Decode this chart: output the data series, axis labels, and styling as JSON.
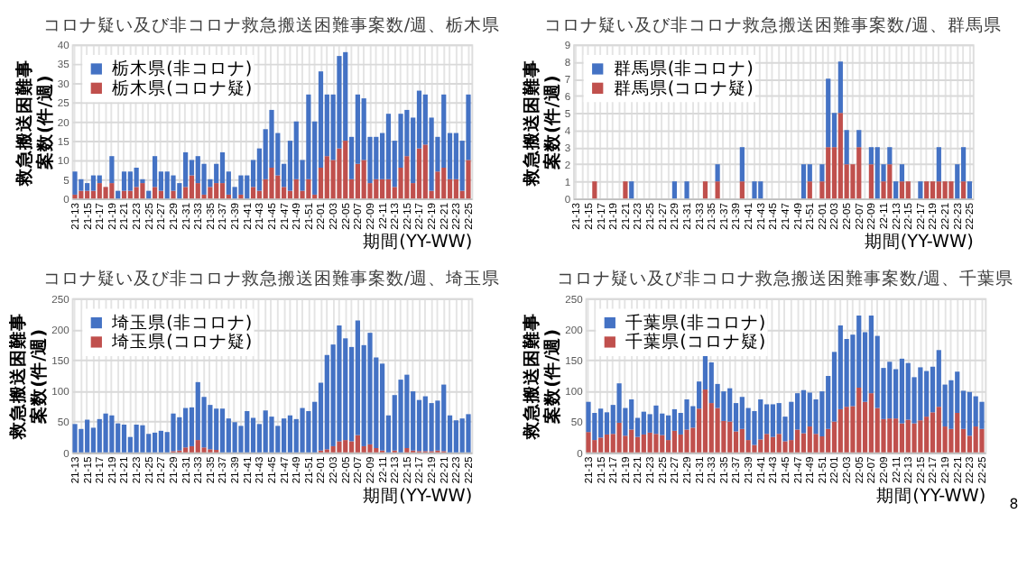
{
  "chart_data": [
    {
      "type": "bar",
      "title": "コロナ疑い及び非コロナ救急搬送困難事案数/週、栃木県",
      "xlabel": "期間(YY-WW)",
      "ylabel": "救急搬送困難事案数(件/週)",
      "stacked": true,
      "grid": true,
      "legend": "top left",
      "ylim": [
        0,
        40
      ],
      "yticks": [
        0,
        5,
        10,
        15,
        20,
        25,
        30,
        35,
        40
      ],
      "categories": [
        "21-13",
        null,
        "21-15",
        null,
        "21-17",
        null,
        "21-19",
        null,
        "21-21",
        null,
        "21-23",
        null,
        "21-25",
        null,
        "21-27",
        null,
        "21-29",
        null,
        "21-31",
        null,
        "21-33",
        null,
        "21-35",
        null,
        "21-37",
        null,
        "21-39",
        null,
        "21-41",
        null,
        "21-43",
        null,
        "21-45",
        null,
        "21-47",
        null,
        "21-49",
        null,
        "21-51",
        null,
        "22-01",
        null,
        "22-03",
        null,
        "22-05",
        null,
        "22-07",
        null,
        "22-09",
        null,
        "22-11",
        null,
        "22-13",
        null,
        "22-15",
        null,
        "22-17",
        null,
        "22-19",
        null,
        "22-21",
        null,
        "22-23",
        null,
        "22-25"
      ],
      "series": [
        {
          "name": "栃木県(コロナ疑)",
          "color": "#c0504d",
          "values": [
            1,
            2,
            2,
            2,
            4,
            3,
            4,
            0,
            2,
            2,
            3,
            4,
            0,
            3,
            2,
            0,
            2,
            0,
            3,
            6,
            4,
            1,
            3,
            4,
            4,
            1,
            0,
            1,
            0,
            3,
            2,
            5,
            8,
            6,
            3,
            2,
            5,
            2,
            5,
            1,
            8,
            11,
            10,
            13,
            15,
            5,
            9,
            10,
            4,
            5,
            5,
            5,
            3,
            8,
            11,
            4,
            13,
            14,
            2,
            7,
            8,
            5,
            5,
            2,
            10
          ]
        },
        {
          "name": "栃木県(非コロナ)",
          "color": "#4472c4",
          "values": [
            6,
            3,
            2,
            4,
            2,
            0,
            7,
            2,
            5,
            5,
            5,
            1,
            2,
            8,
            5,
            7,
            4,
            4,
            9,
            4,
            7,
            8,
            2,
            5,
            8,
            6,
            3,
            5,
            6,
            7,
            11,
            13,
            15,
            11,
            6,
            13,
            15,
            8,
            22,
            19,
            25,
            16,
            17,
            24,
            23,
            11,
            18,
            16,
            12,
            11,
            12,
            17,
            12,
            14,
            12,
            17,
            15,
            13,
            19,
            9,
            19,
            12,
            12,
            13,
            17
          ]
        }
      ]
    },
    {
      "type": "bar",
      "title": "コロナ疑い及び非コロナ救急搬送困難事案数/週、群馬県",
      "xlabel": "期間(YY-WW)",
      "ylabel": "救急搬送困難事案数(件/週)",
      "stacked": true,
      "grid": true,
      "legend": "top left",
      "ylim": [
        0,
        9
      ],
      "yticks": [
        0,
        1,
        2,
        3,
        4,
        5,
        6,
        7,
        8,
        9
      ],
      "categories": [
        "21-13",
        null,
        "21-15",
        null,
        "21-17",
        null,
        "21-19",
        null,
        "21-21",
        null,
        "21-23",
        null,
        "21-25",
        null,
        "21-27",
        null,
        "21-29",
        null,
        "21-31",
        null,
        "21-33",
        null,
        "21-35",
        null,
        "21-37",
        null,
        "21-39",
        null,
        "21-41",
        null,
        "21-43",
        null,
        "21-45",
        null,
        "21-47",
        null,
        "21-49",
        null,
        "21-51",
        null,
        "22-01",
        null,
        "22-03",
        null,
        "22-05",
        null,
        "22-07",
        null,
        "22-09",
        null,
        "22-11",
        null,
        "22-13",
        null,
        "22-15",
        null,
        "22-17",
        null,
        "22-19",
        null,
        "22-21",
        null,
        "22-23",
        null,
        "22-25"
      ],
      "series": [
        {
          "name": "群馬県(コロナ疑)",
          "color": "#c0504d",
          "values": [
            0,
            0,
            0,
            1,
            0,
            0,
            0,
            0,
            1,
            0,
            0,
            0,
            0,
            0,
            0,
            0,
            0,
            0,
            0,
            0,
            0,
            1,
            0,
            1,
            0,
            0,
            0,
            1,
            0,
            0,
            0,
            0,
            0,
            0,
            0,
            0,
            0,
            0,
            1,
            0,
            1,
            3,
            3,
            5,
            2,
            2,
            3,
            0,
            2,
            0,
            1,
            2,
            0,
            1,
            1,
            0,
            0,
            1,
            1,
            1,
            1,
            1,
            0,
            1,
            0
          ]
        },
        {
          "name": "群馬県(非コロナ)",
          "color": "#4472c4",
          "values": [
            0,
            0,
            0,
            0,
            0,
            0,
            0,
            0,
            0,
            1,
            0,
            0,
            0,
            0,
            0,
            0,
            1,
            0,
            1,
            0,
            0,
            0,
            0,
            1,
            0,
            0,
            0,
            2,
            0,
            1,
            1,
            0,
            0,
            0,
            0,
            0,
            0,
            2,
            1,
            0,
            1,
            4,
            2,
            3,
            2,
            0,
            1,
            0,
            1,
            3,
            1,
            1,
            1,
            1,
            0,
            0,
            1,
            0,
            0,
            2,
            0,
            0,
            2,
            2,
            1
          ]
        }
      ]
    },
    {
      "type": "bar",
      "title": "コロナ疑い及び非コロナ救急搬送困難事案数/週、埼玉県",
      "xlabel": "期間(YY-WW)",
      "ylabel": "救急搬送困難事案数(件/週)",
      "stacked": true,
      "grid": true,
      "legend": "top left",
      "ylim": [
        0,
        250
      ],
      "yticks": [
        0,
        50,
        100,
        150,
        200,
        250
      ],
      "categories": [
        "21-13",
        null,
        "21-15",
        null,
        "21-17",
        null,
        "21-19",
        null,
        "21-21",
        null,
        "21-23",
        null,
        "21-25",
        null,
        "21-27",
        null,
        "21-29",
        null,
        "21-31",
        null,
        "21-33",
        null,
        "21-35",
        null,
        "21-37",
        null,
        "21-39",
        null,
        "21-41",
        null,
        "21-43",
        null,
        "21-45",
        null,
        "21-47",
        null,
        "21-49",
        null,
        "21-51",
        null,
        "22-01",
        null,
        "22-03",
        null,
        "22-05",
        null,
        "22-07",
        null,
        "22-09",
        null,
        "22-11",
        null,
        "22-13",
        null,
        "22-15",
        null,
        "22-17",
        null,
        "22-19",
        null,
        "22-21",
        null,
        "22-23",
        null,
        "22-25"
      ],
      "series": [
        {
          "name": "埼玉県(コロナ疑)",
          "color": "#c0504d",
          "values": [
            0,
            0,
            0,
            0,
            0,
            0,
            0,
            0,
            0,
            0,
            0,
            0,
            0,
            0,
            0,
            0,
            2,
            3,
            8,
            10,
            20,
            8,
            5,
            4,
            0,
            0,
            0,
            0,
            0,
            0,
            0,
            0,
            0,
            0,
            0,
            0,
            0,
            0,
            0,
            0,
            3,
            5,
            10,
            18,
            20,
            18,
            28,
            10,
            13,
            7,
            3,
            0,
            3,
            null,
            7,
            3,
            2,
            2,
            2,
            3,
            2,
            null,
            0,
            0,
            0
          ]
        },
        {
          "name": "埼玉県(非コロナ)",
          "color": "#4472c4",
          "values": [
            46,
            38,
            53,
            40,
            54,
            63,
            60,
            47,
            45,
            25,
            45,
            44,
            30,
            32,
            35,
            33,
            61,
            54,
            64,
            63,
            94,
            82,
            72,
            67,
            71,
            55,
            49,
            43,
            67,
            56,
            46,
            68,
            58,
            43,
            55,
            60,
            54,
            72,
            67,
            82,
            110,
            153,
            165,
            188,
            165,
            153,
            186,
            164,
            181,
            147,
            141,
            60,
            90,
            118,
            119,
            96,
            83,
            89,
            78,
            81,
            108,
            60,
            52,
            55,
            62
          ]
        }
      ]
    },
    {
      "type": "bar",
      "title": "コロナ疑い及び非コロナ救急搬送困難事案数/週、千葉県",
      "xlabel": "期間(YY-WW)",
      "ylabel": "救急搬送困難事案数(件/週)",
      "stacked": true,
      "grid": true,
      "legend": "top left",
      "ylim": [
        0,
        250
      ],
      "yticks": [
        0,
        50,
        100,
        150,
        200,
        250
      ],
      "annotations": [
        "8"
      ],
      "categories": [
        "21-13",
        null,
        "21-15",
        null,
        "21-17",
        null,
        "21-19",
        null,
        "21-21",
        null,
        "21-23",
        null,
        "21-25",
        null,
        "21-27",
        null,
        "21-29",
        null,
        "21-31",
        null,
        "21-33",
        null,
        "21-35",
        null,
        "21-37",
        null,
        "21-39",
        null,
        "21-41",
        null,
        "21-43",
        null,
        "21-45",
        null,
        "21-47",
        null,
        "21-49",
        null,
        "21-51",
        null,
        "22-01",
        null,
        "22-03",
        null,
        "22-05",
        null,
        "22-07",
        null,
        "22-09",
        null,
        "22-11",
        null,
        "22-13",
        null,
        "22-15",
        null,
        "22-17",
        null,
        "22-19",
        null,
        "22-21",
        null,
        "22-23",
        null,
        "22-25"
      ],
      "series": [
        {
          "name": "千葉県(コロナ疑)",
          "color": "#c0504d",
          "values": [
            33,
            20,
            24,
            29,
            30,
            48,
            27,
            37,
            25,
            29,
            32,
            30,
            28,
            20,
            35,
            29,
            37,
            40,
            71,
            102,
            80,
            72,
            51,
            50,
            34,
            38,
            20,
            12,
            21,
            30,
            25,
            30,
            18,
            20,
            37,
            31,
            42,
            30,
            26,
            38,
            50,
            70,
            74,
            75,
            105,
            82,
            96,
            72,
            54,
            55,
            55,
            47,
            53,
            47,
            52,
            58,
            65,
            74,
            42,
            38,
            64,
            38,
            27,
            42,
            38
          ]
        },
        {
          "name": "千葉県(非コロナ)",
          "color": "#4472c4",
          "values": [
            49,
            44,
            47,
            36,
            47,
            64,
            45,
            49,
            31,
            37,
            30,
            46,
            35,
            40,
            35,
            35,
            49,
            35,
            44,
            55,
            66,
            39,
            48,
            54,
            46,
            52,
            52,
            55,
            65,
            48,
            53,
            50,
            40,
            62,
            59,
            70,
            55,
            56,
            73,
            86,
            113,
            136,
            110,
            116,
            117,
            113,
            126,
            117,
            83,
            92,
            80,
            105,
            92,
            75,
            86,
            74,
            74,
            92,
            68,
            79,
            67,
            62,
            71,
            49,
            44
          ]
        }
      ]
    }
  ]
}
